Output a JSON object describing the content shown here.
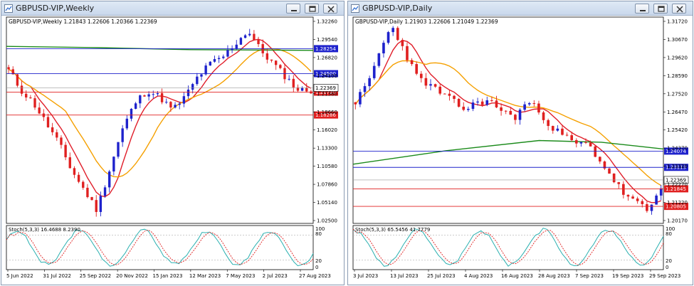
{
  "left": {
    "window_title": "GBPUSD-VIP,Weekly",
    "header": "GBPUSD-VIP,Weekly  1.21843 1.22606 1.20366 1.22369",
    "price_axis": [
      "1.32260",
      "1.29540",
      "1.26820",
      "1.24100",
      "1.21380",
      "1.18660",
      "1.16020",
      "1.13300",
      "1.10580",
      "1.07860",
      "1.05140",
      "1.02500"
    ],
    "levels": [
      {
        "price": 1.28254,
        "label": "1.28254",
        "color": "#1e22cc",
        "tag_color": "#1e22cc"
      },
      {
        "price": 1.245,
        "label": "1.24500",
        "color": "#1e22cc",
        "tag_color": "#1e22cc"
      },
      {
        "price": 1.2172,
        "label": "1.21720",
        "color": "#e02020",
        "tag_color": "#e02020"
      },
      {
        "price": 1.18286,
        "label": "1.18286",
        "color": "#e02020",
        "tag_color": "#e02020"
      }
    ],
    "current": {
      "price": 1.22369,
      "label": "1.22369"
    },
    "stoch_header": "Stoch(5,3,3) 16.4688 8.2390",
    "stoch_axis": [
      "100",
      "80",
      "20",
      "0"
    ],
    "dates": [
      "5 Jun 2022",
      "31 Jul 2022",
      "25 Sep 2022",
      "20 Nov 2022",
      "15 Jan 2023",
      "12 Mar 2023",
      "7 May 2023",
      "2 Jul 2023",
      "27 Aug 2023"
    ]
  },
  "right": {
    "window_title": "GBPUSD-VIP,Daily",
    "header": "GBPUSD-VIP,Daily  1.21903 1.22606 1.21049 1.22369",
    "price_axis": [
      "1.31720",
      "1.30670",
      "1.29620",
      "1.28590",
      "1.27520",
      "1.26470",
      "1.25420",
      "1.24370",
      "1.23320",
      "1.22270",
      "1.21220",
      "1.20170"
    ],
    "levels": [
      {
        "price": 1.24074,
        "label": "1.24074",
        "color": "#1e22cc",
        "tag_color": "#1e22cc"
      },
      {
        "price": 1.23113,
        "label": "1.23113",
        "color": "#1e22cc",
        "tag_color": "#1e22cc"
      },
      {
        "price": 1.21845,
        "label": "1.21845",
        "color": "#e02020",
        "tag_color": "#e02020"
      },
      {
        "price": 1.20805,
        "label": "1.20805",
        "color": "#e02020",
        "tag_color": "#e02020"
      }
    ],
    "current": {
      "price": 1.22369,
      "label": "1.22369"
    },
    "stoch_header": "Stoch(5,3,3) 65.5456 41.7779",
    "stoch_axis": [
      "100",
      "80",
      "20",
      "0"
    ],
    "dates": [
      "3 Jul 2023",
      "13 Jul 2023",
      "25 Jul 2023",
      "4 Aug 2023",
      "16 Aug 2023",
      "28 Aug 2023",
      "7 Sep 2023",
      "19 Sep 2023",
      "29 Sep 2023"
    ]
  },
  "colors": {
    "bull": "#1e22cc",
    "bear": "#e02020",
    "ma_fast": "#e01e2a",
    "ma_mid": "#f5a000",
    "ma_slow": "#1a8a1a",
    "stoch_main": "#2ab0b0",
    "stoch_signal": "#e02020"
  }
}
